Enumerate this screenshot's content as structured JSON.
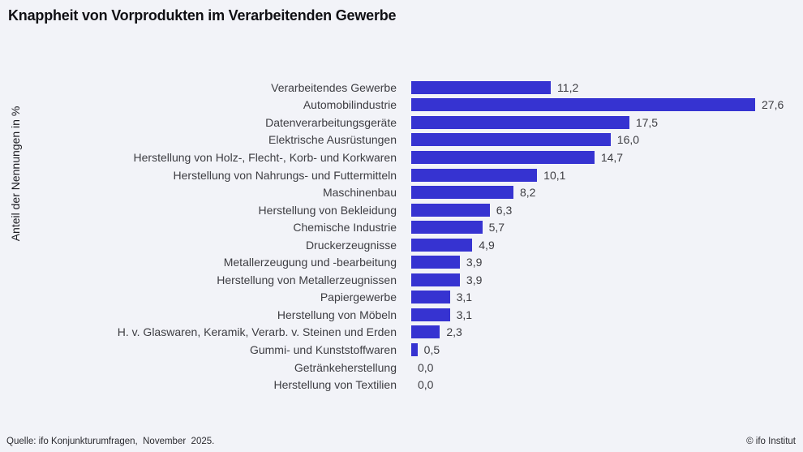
{
  "title": "Knappheit von Vorprodukten im Verarbeitenden Gewerbe",
  "ylabel": "Anteil der Nennungen in %",
  "footer": {
    "source": "Quelle: ifo Konjunkturumfragen,  November  2025.",
    "copyright": "© ifo Institut"
  },
  "colors": {
    "bar": "#3633d1",
    "background": "#f2f3f8",
    "label_text": "#3d3d42",
    "title_text": "#101014"
  },
  "chart_data": {
    "type": "bar",
    "orientation": "horizontal",
    "title": "Knappheit von Vorprodukten im Verarbeitenden Gewerbe",
    "xlabel": "",
    "ylabel": "Anteil der Nennungen in %",
    "xlim": [
      0,
      29
    ],
    "grid": false,
    "legend": "none",
    "value_label_position": "end-of-bar",
    "categories": [
      "Verarbeitendes Gewerbe",
      "Automobilindustrie",
      "Datenverarbeitungsgeräte",
      "Elektrische Ausrüstungen",
      "Herstellung von Holz-, Flecht-, Korb- und Korkwaren",
      "Herstellung von Nahrungs- und Futtermitteln",
      "Maschinenbau",
      "Herstellung von Bekleidung",
      "Chemische Industrie",
      "Druckerzeugnisse",
      "Metallerzeugung und -bearbeitung",
      "Herstellung von Metallerzeugnissen",
      "Papiergewerbe",
      "Herstellung von Möbeln",
      "H. v. Glaswaren, Keramik, Verarb. v. Steinen und Erden",
      "Gummi- und Kunststoffwaren",
      "Getränkeherstellung",
      "Herstellung von Textilien"
    ],
    "values": [
      11.2,
      27.6,
      17.5,
      16.0,
      14.7,
      10.1,
      8.2,
      6.3,
      5.7,
      4.9,
      3.9,
      3.9,
      3.1,
      3.1,
      2.3,
      0.5,
      0.0,
      0.0
    ],
    "value_labels": [
      "11,2",
      "27,6",
      "17,5",
      "16,0",
      "14,7",
      "10,1",
      "8,2",
      "6,3",
      "5,7",
      "4,9",
      "3,9",
      "3,9",
      "3,1",
      "3,1",
      "2,3",
      "0,5",
      "0,0",
      "0,0"
    ]
  }
}
